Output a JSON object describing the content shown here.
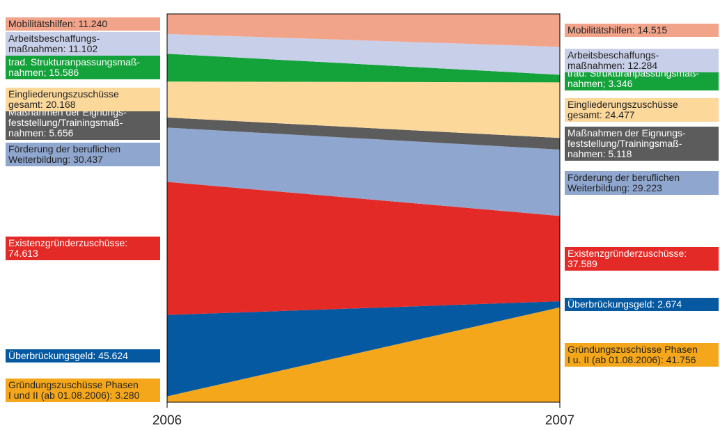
{
  "chart_data": {
    "type": "area",
    "x": [
      "2006",
      "2007"
    ],
    "stacked": true,
    "colors": {
      "gruendung": "#f5a71c",
      "ueberbrueckung": "#0559a1",
      "existenz": "#e42a27",
      "weiterbildung": "#8fa6cf",
      "eignung": "#5c5c5c",
      "eingliederung": "#fcd89b",
      "struktur": "#14a23a",
      "arbeit": "#c8cfe8",
      "mobil": "#f2a48a"
    },
    "series": [
      {
        "key": "gruendung",
        "values": [
          3280,
          41756
        ],
        "label_2006": "Gründungszuschüsse Phasen\nI und II (ab 01.08.2006): 3.280",
        "label_2007": "Gründungszuschüsse Phasen\nI u. II (ab 01.08.2006): 41.756"
      },
      {
        "key": "ueberbrueckung",
        "values": [
          45624,
          2674
        ],
        "label_2006": "Überbrückungsgeld: 45.624",
        "label_2007": "Überbrückungsgeld: 2.674"
      },
      {
        "key": "existenz",
        "values": [
          74613,
          37589
        ],
        "label_2006": "Existenzgründerzuschüsse:\n74.613",
        "label_2007": "Existenzgründerzuschüsse:\n37.589"
      },
      {
        "key": "weiterbildung",
        "values": [
          30437,
          29223
        ],
        "label_2006": "Förderung der beruflichen\nWeiterbildung: 30.437",
        "label_2007": "Förderung der beruflichen\nWeiterbildung: 29.223"
      },
      {
        "key": "eignung",
        "values": [
          5656,
          5118
        ],
        "label_2006": "Maßnahmen der Eignungs-\nfeststellung/Trainingsmaß-\nnahmen: 5.656",
        "label_2007": "Maßnahmen der Eignungs-\nfeststellung/Trainingsmaß-\nnahmen: 5.118"
      },
      {
        "key": "eingliederung",
        "values": [
          20168,
          24477
        ],
        "label_2006": "Eingliederungszuschüsse\ngesamt: 20.168",
        "label_2007": "Eingliederungszuschüsse\ngesamt: 24.477"
      },
      {
        "key": "struktur",
        "values": [
          15586,
          3346
        ],
        "label_2006": "trad. Strukturanpassungsmaß-\nnahmen; 15.586",
        "label_2007": "trad. Strukturanpassungsmaß-\nnahmen; 3.346"
      },
      {
        "key": "arbeit",
        "values": [
          11102,
          12284
        ],
        "label_2006": "Arbeitsbeschaffungs-\nmaßnahmen: 11.102",
        "label_2007": "Arbeitsbeschaffungs-\nmaßnahmen: 12.284"
      },
      {
        "key": "mobil",
        "values": [
          11240,
          14515
        ],
        "label_2006": "Mobilitätshilfen: 11.240",
        "label_2007": "Mobilitätshilfen: 14.515"
      }
    ]
  }
}
